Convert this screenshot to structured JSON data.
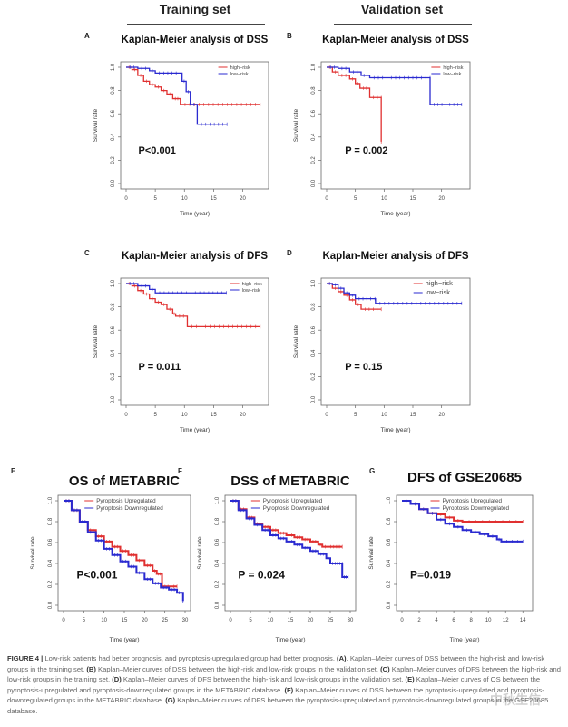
{
  "headers": {
    "training": "Training set",
    "validation": "Validation set"
  },
  "chart_data": [
    {
      "panel": "A",
      "type": "line",
      "title": "Kaplan-Meier analysis of DSS",
      "xlabel": "Time (year)",
      "ylabel": "Survival rate",
      "xlim": [
        0,
        23.5
      ],
      "ylim": [
        0,
        1
      ],
      "xticks": [
        0,
        5,
        10,
        15,
        20
      ],
      "yticks": [
        "0.0",
        "0.2",
        "0.4",
        "0.6",
        "0.8",
        "1.0"
      ],
      "pvalue": "P<0.001",
      "legend_position": "top-right",
      "series": [
        {
          "name": "high−risk",
          "color": "#e03030",
          "points": [
            [
              0,
              1
            ],
            [
              1,
              0.98
            ],
            [
              2,
              0.93
            ],
            [
              3,
              0.88
            ],
            [
              4,
              0.85
            ],
            [
              5,
              0.83
            ],
            [
              6,
              0.8
            ],
            [
              7,
              0.77
            ],
            [
              8,
              0.73
            ],
            [
              9.3,
              0.68
            ],
            [
              23,
              0.68
            ]
          ]
        },
        {
          "name": "low−risk",
          "color": "#2a2ad0",
          "points": [
            [
              0,
              1
            ],
            [
              2,
              0.99
            ],
            [
              4,
              0.97
            ],
            [
              5,
              0.95
            ],
            [
              9.3,
              0.95
            ],
            [
              9.6,
              0.88
            ],
            [
              10.3,
              0.79
            ],
            [
              11,
              0.68
            ],
            [
              12.2,
              0.51
            ],
            [
              17.3,
              0.51
            ]
          ]
        }
      ]
    },
    {
      "panel": "B",
      "type": "line",
      "title": "Kaplan-Meier analysis of DSS",
      "xlabel": "Time (year)",
      "ylabel": "Survival rate",
      "xlim": [
        0,
        24
      ],
      "ylim": [
        0,
        1
      ],
      "xticks": [
        0,
        5,
        10,
        15,
        20
      ],
      "yticks": [
        "0.0",
        "0.2",
        "0.4",
        "0.6",
        "0.8",
        "1.0"
      ],
      "pvalue": "P = 0.002",
      "legend_position": "top-right",
      "series": [
        {
          "name": "high−risk",
          "color": "#e03030",
          "points": [
            [
              0,
              1
            ],
            [
              1,
              0.96
            ],
            [
              2,
              0.93
            ],
            [
              4,
              0.9
            ],
            [
              5,
              0.86
            ],
            [
              5.8,
              0.82
            ],
            [
              7.5,
              0.74
            ],
            [
              9.5,
              0.74
            ],
            [
              9.5,
              0.36
            ]
          ]
        },
        {
          "name": "low−risk",
          "color": "#2a2ad0",
          "points": [
            [
              0,
              1
            ],
            [
              2,
              0.99
            ],
            [
              4,
              0.96
            ],
            [
              6,
              0.93
            ],
            [
              7.5,
              0.91
            ],
            [
              18,
              0.91
            ],
            [
              18,
              0.68
            ],
            [
              23.5,
              0.68
            ]
          ]
        }
      ]
    },
    {
      "panel": "C",
      "type": "line",
      "title": "Kaplan-Meier analysis of DFS",
      "xlabel": "Time (year)",
      "ylabel": "Survival rate",
      "xlim": [
        0,
        23.5
      ],
      "ylim": [
        0,
        1
      ],
      "xticks": [
        0,
        5,
        10,
        15,
        20
      ],
      "yticks": [
        "0.0",
        "0.2",
        "0.4",
        "0.6",
        "0.8",
        "1.0"
      ],
      "pvalue": "P = 0.011",
      "legend_position": "top-right",
      "series": [
        {
          "name": "high−risk",
          "color": "#e03030",
          "points": [
            [
              0,
              1
            ],
            [
              1,
              0.98
            ],
            [
              2,
              0.94
            ],
            [
              3,
              0.91
            ],
            [
              4,
              0.87
            ],
            [
              5,
              0.84
            ],
            [
              6,
              0.82
            ],
            [
              7,
              0.78
            ],
            [
              8,
              0.74
            ],
            [
              8.5,
              0.72
            ],
            [
              10.5,
              0.63
            ],
            [
              23,
              0.63
            ]
          ]
        },
        {
          "name": "low−risk",
          "color": "#2a2ad0",
          "points": [
            [
              0,
              1
            ],
            [
              2,
              0.98
            ],
            [
              4,
              0.95
            ],
            [
              5,
              0.92
            ],
            [
              17.2,
              0.92
            ]
          ]
        }
      ]
    },
    {
      "panel": "D",
      "type": "line",
      "title": "Kaplan-Meier analysis of DFS",
      "xlabel": "Time (year)",
      "ylabel": "Survival rate",
      "xlim": [
        0,
        24
      ],
      "ylim": [
        0,
        1
      ],
      "xticks": [
        0,
        5,
        10,
        15,
        20
      ],
      "yticks": [
        "0.0",
        "0.2",
        "0.4",
        "0.6",
        "0.8",
        "1.0"
      ],
      "pvalue": "P = 0.15",
      "legend_position": "top-right",
      "series": [
        {
          "name": "high−risk",
          "color": "#e03030",
          "points": [
            [
              0,
              1
            ],
            [
              1,
              0.96
            ],
            [
              2,
              0.93
            ],
            [
              3,
              0.9
            ],
            [
              4,
              0.86
            ],
            [
              5,
              0.82
            ],
            [
              6,
              0.78
            ],
            [
              9.5,
              0.78
            ]
          ]
        },
        {
          "name": "low−risk",
          "color": "#2a2ad0",
          "points": [
            [
              0,
              1
            ],
            [
              1,
              0.99
            ],
            [
              2,
              0.96
            ],
            [
              3,
              0.92
            ],
            [
              4,
              0.9
            ],
            [
              5,
              0.87
            ],
            [
              8.3,
              0.87
            ],
            [
              8.5,
              0.83
            ],
            [
              23.5,
              0.83
            ]
          ]
        }
      ]
    },
    {
      "panel": "E",
      "type": "line",
      "title": "OS of METABRIC",
      "xlabel": "Time (year)",
      "ylabel": "Survival rate",
      "xlim": [
        0,
        30
      ],
      "ylim": [
        0,
        1
      ],
      "xticks": [
        0,
        5,
        10,
        15,
        20,
        25,
        30
      ],
      "yticks": [
        "0.0",
        "0.2",
        "0.4",
        "0.6",
        "0.8",
        "1.0"
      ],
      "pvalue": "P<0.001",
      "legend_position": "top-right",
      "series": [
        {
          "name": "Pyroptosis Upregulated",
          "color": "#e03030",
          "points": [
            [
              0,
              1
            ],
            [
              2,
              0.91
            ],
            [
              4,
              0.8
            ],
            [
              6,
              0.72
            ],
            [
              8,
              0.66
            ],
            [
              10,
              0.61
            ],
            [
              12,
              0.56
            ],
            [
              14,
              0.52
            ],
            [
              16,
              0.48
            ],
            [
              18,
              0.43
            ],
            [
              20,
              0.38
            ],
            [
              22,
              0.33
            ],
            [
              23,
              0.3
            ],
            [
              24.3,
              0.3
            ],
            [
              24.3,
              0.18
            ],
            [
              28,
              0.18
            ]
          ]
        },
        {
          "name": "Pyroptosis Downregulated",
          "color": "#2a2ad0",
          "points": [
            [
              0,
              1
            ],
            [
              2,
              0.91
            ],
            [
              4,
              0.8
            ],
            [
              6,
              0.7
            ],
            [
              8,
              0.62
            ],
            [
              10,
              0.54
            ],
            [
              12,
              0.48
            ],
            [
              14,
              0.42
            ],
            [
              16,
              0.37
            ],
            [
              18,
              0.31
            ],
            [
              20,
              0.25
            ],
            [
              22,
              0.21
            ],
            [
              24,
              0.17
            ],
            [
              26,
              0.15
            ],
            [
              28,
              0.12
            ],
            [
              29.5,
              0.04
            ]
          ]
        }
      ]
    },
    {
      "panel": "F",
      "type": "line",
      "title": "DSS of METABRIC",
      "xlabel": "Time (year)",
      "ylabel": "Survival rate",
      "xlim": [
        0,
        30
      ],
      "ylim": [
        0,
        1
      ],
      "xticks": [
        0,
        5,
        10,
        15,
        20,
        25,
        30
      ],
      "yticks": [
        "0.0",
        "0.2",
        "0.4",
        "0.6",
        "0.8",
        "1.0"
      ],
      "pvalue": "P = 0.024",
      "legend_position": "top-right",
      "series": [
        {
          "name": "Pyroptosis Upregulated",
          "color": "#e03030",
          "points": [
            [
              0,
              1
            ],
            [
              2,
              0.92
            ],
            [
              4,
              0.84
            ],
            [
              6,
              0.78
            ],
            [
              8,
              0.75
            ],
            [
              10,
              0.72
            ],
            [
              12,
              0.69
            ],
            [
              14,
              0.67
            ],
            [
              16,
              0.65
            ],
            [
              18,
              0.63
            ],
            [
              20,
              0.61
            ],
            [
              22,
              0.58
            ],
            [
              23,
              0.56
            ],
            [
              28,
              0.56
            ]
          ]
        },
        {
          "name": "Pyroptosis Downregulated",
          "color": "#2a2ad0",
          "points": [
            [
              0,
              1
            ],
            [
              2,
              0.91
            ],
            [
              4,
              0.83
            ],
            [
              6,
              0.77
            ],
            [
              8,
              0.72
            ],
            [
              10,
              0.67
            ],
            [
              12,
              0.64
            ],
            [
              14,
              0.61
            ],
            [
              16,
              0.58
            ],
            [
              18,
              0.55
            ],
            [
              20,
              0.52
            ],
            [
              22,
              0.49
            ],
            [
              24,
              0.45
            ],
            [
              25,
              0.4
            ],
            [
              28,
              0.4
            ],
            [
              28,
              0.27
            ],
            [
              29.5,
              0.27
            ]
          ]
        }
      ]
    },
    {
      "panel": "G",
      "type": "line",
      "title": "DFS of GSE20685",
      "xlabel": "Time (year)",
      "ylabel": "Survival rate",
      "xlim": [
        0,
        14.5
      ],
      "ylim": [
        0,
        1
      ],
      "xticks": [
        0,
        2,
        4,
        6,
        8,
        10,
        12,
        14
      ],
      "yticks": [
        "0.0",
        "0.2",
        "0.4",
        "0.6",
        "0.8",
        "1.0"
      ],
      "pvalue": "P=0.019",
      "legend_position": "top-right",
      "series": [
        {
          "name": "Pyroptosis Upregulated",
          "color": "#e03030",
          "points": [
            [
              0,
              1
            ],
            [
              1,
              0.97
            ],
            [
              2,
              0.92
            ],
            [
              3,
              0.88
            ],
            [
              4,
              0.87
            ],
            [
              5,
              0.84
            ],
            [
              6,
              0.81
            ],
            [
              7,
              0.8
            ],
            [
              14,
              0.8
            ]
          ]
        },
        {
          "name": "Pyroptosis Downregulated",
          "color": "#2a2ad0",
          "points": [
            [
              0,
              1
            ],
            [
              1,
              0.97
            ],
            [
              2,
              0.92
            ],
            [
              3,
              0.88
            ],
            [
              4,
              0.82
            ],
            [
              5,
              0.78
            ],
            [
              6,
              0.75
            ],
            [
              7,
              0.72
            ],
            [
              8,
              0.7
            ],
            [
              9,
              0.68
            ],
            [
              10,
              0.66
            ],
            [
              11,
              0.63
            ],
            [
              11.5,
              0.61
            ],
            [
              14,
              0.61
            ]
          ]
        }
      ]
    }
  ],
  "caption": [
    {
      "bold": true,
      "text": "FIGURE 4 | "
    },
    {
      "bold": false,
      "text": "Low-risk patients had better prognosis, and pyroptosis-upregulated group had better prognosis. "
    },
    {
      "bold": true,
      "text": "(A)"
    },
    {
      "bold": false,
      "text": ". Kaplan–Meier curves of DSS between the high-risk and low-risk groups in the training set. "
    },
    {
      "bold": true,
      "text": "(B)"
    },
    {
      "bold": false,
      "text": " Kaplan–Meier curves of DSS between the high-risk and low-risk groups in the validation set. "
    },
    {
      "bold": true,
      "text": "(C)"
    },
    {
      "bold": false,
      "text": " Kaplan–Meier curves of DFS between the high-risk and low-risk groups in the training set. "
    },
    {
      "bold": true,
      "text": "(D)"
    },
    {
      "bold": false,
      "text": " Kaplan–Meier curves of DFS between the high-risk and low-risk groups in the validation set. "
    },
    {
      "bold": true,
      "text": "(E)"
    },
    {
      "bold": false,
      "text": " Kaplan–Meier curves of OS between the pyroptosis-upregulated and pyroptosis-downregulated groups in the METABRIC database. "
    },
    {
      "bold": true,
      "text": "(F)"
    },
    {
      "bold": false,
      "text": " Kaplan–Meier curves of DSS between the pyroptosis-upregulated and pyroptosis-downregulated groups in the METABRIC database. "
    },
    {
      "bold": true,
      "text": "(G)"
    },
    {
      "bold": false,
      "text": " Kaplan–Meier curves of DFS between the pyroptosis-upregulated and pyroptosis-downregulated groups in the GSE20685 database."
    }
  ],
  "watermark": "中秋生信"
}
